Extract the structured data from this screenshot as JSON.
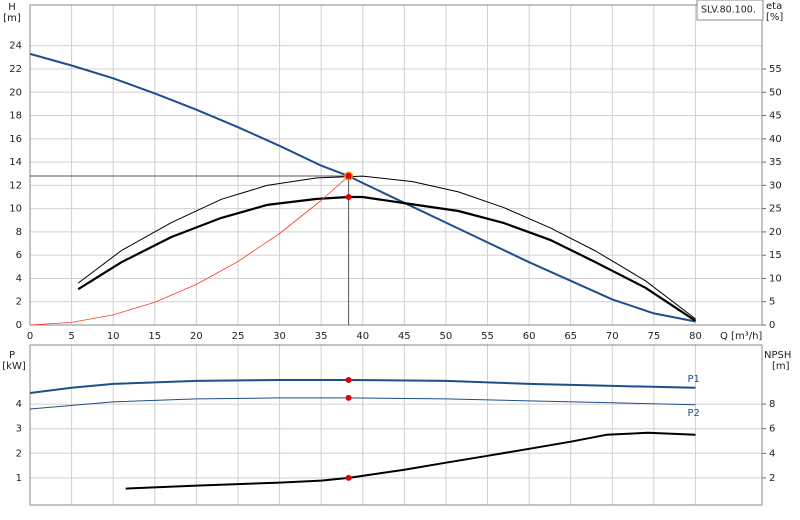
{
  "chart_data": [
    {
      "type": "line",
      "title": "SLV.80.100.",
      "y_label": "H",
      "y_unit": "[m]",
      "y2_label": "eta",
      "y2_unit": "[%]",
      "x_label": "Q [m³/h]",
      "xlim": [
        0,
        88
      ],
      "xticks": [
        0,
        5,
        10,
        15,
        20,
        25,
        30,
        35,
        40,
        45,
        50,
        55,
        60,
        65,
        70,
        75,
        80
      ],
      "ylim": [
        0,
        27.5
      ],
      "yticks": [
        0,
        2,
        4,
        6,
        8,
        10,
        12,
        14,
        16,
        18,
        20,
        22,
        24
      ],
      "y2lim": [
        0,
        68.75
      ],
      "y2ticks": [
        0,
        5,
        10,
        15,
        20,
        25,
        30,
        35,
        40,
        45,
        50,
        55
      ],
      "grid": true,
      "xtick_labels": true,
      "series": [
        {
          "color": "#1f4e8c",
          "width": 2,
          "x": [
            0,
            5,
            10,
            15,
            20,
            25,
            30,
            35,
            38.3,
            40,
            45,
            50,
            55,
            60,
            65,
            70,
            75,
            80
          ],
          "values": [
            23.3,
            22.3,
            21.2,
            19.9,
            18.5,
            17.0,
            15.4,
            13.7,
            12.8,
            12.2,
            10.5,
            8.8,
            7.1,
            5.4,
            3.8,
            2.2,
            1.0,
            0.3
          ]
        },
        {
          "color": "#000000",
          "width": 1,
          "axis": "y2",
          "x": [
            5.8,
            11,
            17,
            23,
            28.5,
            34.5,
            40,
            46,
            51.5,
            57,
            62.5,
            68,
            74,
            80
          ],
          "values": [
            9,
            16,
            22,
            27,
            30,
            31.6,
            32,
            30.8,
            28.6,
            25.2,
            20.9,
            15.9,
            9.5,
            1.3
          ]
        },
        {
          "color": "#000000",
          "width": 2.2,
          "axis": "y2",
          "x": [
            5.8,
            11,
            17,
            23,
            28.5,
            34.5,
            38.3,
            40,
            45,
            51.5,
            57,
            62.5,
            68,
            74,
            80
          ],
          "values": [
            7.7,
            13.5,
            18.9,
            23,
            25.8,
            27.1,
            27.5,
            27.5,
            26.2,
            24.5,
            21.9,
            18.3,
            13.5,
            8,
            0.9
          ]
        },
        {
          "color": "#ff3b30",
          "width": 0.8,
          "x": [
            0,
            5,
            10,
            15,
            20,
            25,
            30,
            35,
            38.3
          ],
          "values": [
            0,
            0.22,
            0.87,
            1.96,
            3.49,
            5.46,
            7.86,
            10.7,
            12.8
          ]
        }
      ],
      "markers": [
        {
          "x": 38.3,
          "y": 12.8,
          "guide": true
        },
        {
          "x": 38.3,
          "y": 27.5,
          "axis": "y2"
        }
      ]
    },
    {
      "type": "line",
      "y_label": "P",
      "y_unit": "[kW]",
      "y2_label": "NPSH",
      "y2_unit": "[m]",
      "xlim": [
        0,
        88
      ],
      "xticks": [
        0,
        5,
        10,
        15,
        20,
        25,
        30,
        35,
        40,
        45,
        50,
        55,
        60,
        65,
        70,
        75,
        80
      ],
      "ylim": [
        -0.1,
        6.4
      ],
      "yticks": [
        1,
        2,
        3,
        4
      ],
      "y2lim": [
        -0.2,
        12.8
      ],
      "y2ticks": [
        2,
        4,
        6,
        8
      ],
      "grid": true,
      "xtick_labels": false,
      "series": [
        {
          "name": "P1",
          "color": "#1f4e8c",
          "width": 2,
          "x": [
            0,
            5,
            10,
            20,
            30,
            38.3,
            50,
            60,
            70,
            80
          ],
          "values": [
            4.45,
            4.66,
            4.82,
            4.94,
            4.98,
            4.98,
            4.94,
            4.82,
            4.74,
            4.66
          ]
        },
        {
          "name": "P2",
          "color": "#1f4e8c",
          "width": 1,
          "x": [
            0,
            10,
            20,
            30,
            38.3,
            50,
            60,
            70,
            80
          ],
          "values": [
            3.8,
            4.09,
            4.21,
            4.25,
            4.25,
            4.21,
            4.13,
            4.05,
            3.97
          ]
        },
        {
          "color": "#000000",
          "width": 2,
          "axis": "y2",
          "x": [
            11.5,
            20,
            30,
            35,
            38.3,
            45,
            50,
            55,
            60,
            65,
            69.3,
            74.3,
            80
          ],
          "values": [
            1.13,
            1.38,
            1.62,
            1.78,
            2.0,
            2.67,
            3.24,
            3.8,
            4.37,
            4.94,
            5.5,
            5.67,
            5.5
          ]
        }
      ],
      "markers": [
        {
          "x": 38.3,
          "y": 4.98
        },
        {
          "x": 38.3,
          "y": 4.25
        },
        {
          "x": 38.3,
          "y": 2.0,
          "axis": "y2"
        }
      ]
    }
  ]
}
